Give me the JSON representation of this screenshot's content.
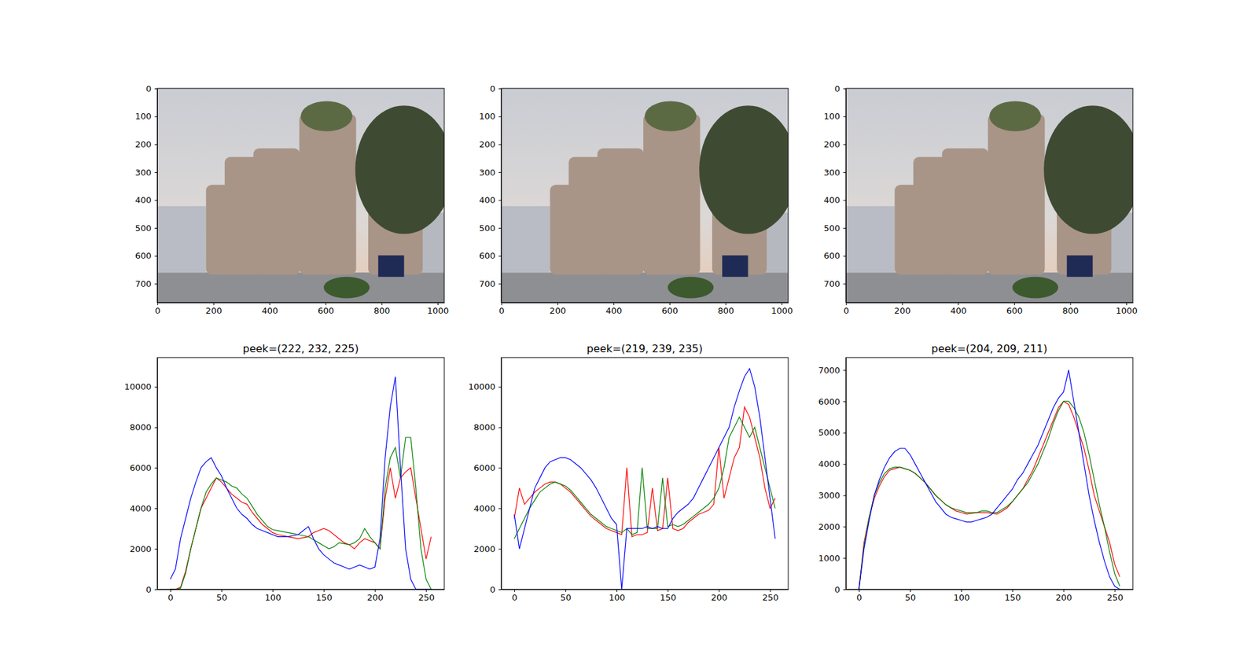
{
  "chart_data": [
    {
      "type": "image",
      "xlim": [
        -0.5,
        1023.5
      ],
      "ylim": [
        767.5,
        -0.5
      ],
      "xticks": [
        0,
        200,
        400,
        600,
        800,
        1000
      ],
      "yticks": [
        0,
        100,
        200,
        300,
        400,
        500,
        600,
        700
      ]
    },
    {
      "type": "image",
      "xlim": [
        -0.5,
        1023.5
      ],
      "ylim": [
        767.5,
        -0.5
      ],
      "xticks": [
        0,
        200,
        400,
        600,
        800,
        1000
      ],
      "yticks": [
        0,
        100,
        200,
        300,
        400,
        500,
        600,
        700
      ]
    },
    {
      "type": "image",
      "xlim": [
        -0.5,
        1023.5
      ],
      "ylim": [
        767.5,
        -0.5
      ],
      "xticks": [
        0,
        200,
        400,
        600,
        800,
        1000
      ],
      "yticks": [
        0,
        100,
        200,
        300,
        400,
        500,
        600,
        700
      ]
    },
    {
      "type": "line",
      "title": "peek=(222, 232, 225)",
      "x": [
        0,
        5,
        10,
        15,
        20,
        25,
        30,
        35,
        40,
        45,
        50,
        55,
        60,
        65,
        70,
        75,
        80,
        85,
        90,
        95,
        100,
        105,
        110,
        115,
        120,
        125,
        130,
        135,
        140,
        145,
        150,
        155,
        160,
        165,
        170,
        175,
        180,
        185,
        190,
        195,
        200,
        205,
        210,
        215,
        220,
        225,
        230,
        235,
        240,
        245,
        250,
        255
      ],
      "xlim": [
        -12.75,
        267.75
      ],
      "xticks": [
        0,
        50,
        100,
        150,
        200,
        250
      ],
      "ylim": [
        0,
        11445
      ],
      "yticks": [
        0,
        2000,
        4000,
        6000,
        8000,
        10000
      ],
      "series": [
        {
          "color": "#ff0000",
          "values": [
            0,
            0,
            100,
            900,
            2000,
            3000,
            4000,
            4500,
            5000,
            5500,
            5300,
            5000,
            4700,
            4500,
            4300,
            4200,
            3800,
            3500,
            3200,
            3000,
            2800,
            2700,
            2650,
            2600,
            2550,
            2500,
            2550,
            2600,
            2800,
            2900,
            3000,
            2900,
            2700,
            2500,
            2300,
            2200,
            2000,
            2300,
            2500,
            2400,
            2300,
            2000,
            4500,
            6000,
            4500,
            5500,
            5800,
            6000,
            4500,
            3000,
            1500,
            2600
          ]
        },
        {
          "color": "#008000",
          "values": [
            0,
            0,
            50,
            800,
            2000,
            3000,
            4000,
            4800,
            5200,
            5500,
            5400,
            5300,
            5100,
            5000,
            4700,
            4500,
            4100,
            3700,
            3400,
            3100,
            2950,
            2900,
            2850,
            2800,
            2750,
            2700,
            2650,
            2600,
            2450,
            2300,
            2150,
            2000,
            2100,
            2300,
            2250,
            2200,
            2300,
            2500,
            3000,
            2600,
            2300,
            2000,
            5000,
            6500,
            7000,
            5500,
            7500,
            7500,
            5000,
            2000,
            500,
            0
          ]
        },
        {
          "color": "#0000ff",
          "values": [
            500,
            1000,
            2500,
            3500,
            4500,
            5300,
            6000,
            6300,
            6500,
            6000,
            5600,
            5000,
            4500,
            4000,
            3700,
            3500,
            3200,
            3000,
            2900,
            2800,
            2700,
            2600,
            2600,
            2600,
            2650,
            2700,
            2900,
            3100,
            2500,
            2000,
            1700,
            1500,
            1300,
            1200,
            1100,
            1000,
            1100,
            1200,
            1100,
            1000,
            1100,
            2500,
            6500,
            9000,
            10500,
            6000,
            2000,
            500,
            0,
            0,
            0,
            0
          ]
        }
      ]
    },
    {
      "type": "line",
      "title": "peek=(219, 239, 235)",
      "x": [
        0,
        5,
        10,
        15,
        20,
        25,
        30,
        35,
        40,
        45,
        50,
        55,
        60,
        65,
        70,
        75,
        80,
        85,
        90,
        95,
        100,
        105,
        110,
        115,
        120,
        125,
        130,
        135,
        140,
        145,
        150,
        155,
        160,
        165,
        170,
        175,
        180,
        185,
        190,
        195,
        200,
        205,
        210,
        215,
        220,
        225,
        230,
        235,
        240,
        245,
        250,
        255
      ],
      "xlim": [
        -12.75,
        267.75
      ],
      "xticks": [
        0,
        50,
        100,
        150,
        200,
        250
      ],
      "ylim": [
        0,
        11445
      ],
      "yticks": [
        0,
        2000,
        4000,
        6000,
        8000,
        10000
      ],
      "series": [
        {
          "color": "#ff0000",
          "values": [
            3500,
            5000,
            4200,
            4500,
            4800,
            5000,
            5200,
            5300,
            5300,
            5200,
            5000,
            4800,
            4500,
            4200,
            3900,
            3600,
            3400,
            3200,
            3000,
            2900,
            2800,
            2700,
            6000,
            2600,
            2700,
            2700,
            2800,
            5000,
            2900,
            3000,
            5500,
            3000,
            2900,
            3000,
            3300,
            3500,
            3700,
            3800,
            3900,
            4200,
            7000,
            4500,
            5500,
            6500,
            7000,
            9000,
            8500,
            7500,
            6500,
            5000,
            4000,
            4500
          ]
        },
        {
          "color": "#008000",
          "values": [
            2500,
            3000,
            3500,
            4000,
            4400,
            4800,
            5000,
            5200,
            5300,
            5200,
            5100,
            4900,
            4600,
            4300,
            4000,
            3700,
            3500,
            3300,
            3100,
            3000,
            2900,
            2800,
            3000,
            2700,
            2800,
            6000,
            3000,
            3000,
            3000,
            5500,
            3100,
            3200,
            3100,
            3200,
            3400,
            3600,
            3800,
            4000,
            4200,
            4500,
            5000,
            6000,
            7500,
            8000,
            8500,
            8000,
            7500,
            8000,
            7000,
            6000,
            5000,
            4000
          ]
        },
        {
          "color": "#0000ff",
          "values": [
            3700,
            2000,
            3000,
            4000,
            5000,
            5500,
            6000,
            6300,
            6400,
            6500,
            6500,
            6400,
            6200,
            6000,
            5700,
            5400,
            5000,
            4500,
            4000,
            3500,
            3200,
            0,
            3000,
            3000,
            3000,
            3000,
            3100,
            3000,
            3100,
            3000,
            3000,
            3500,
            3800,
            4000,
            4200,
            4500,
            5000,
            5500,
            6000,
            6500,
            7000,
            7500,
            8000,
            9000,
            9800,
            10500,
            10900,
            10000,
            8500,
            6500,
            4500,
            2500
          ]
        }
      ]
    },
    {
      "type": "line",
      "title": "peek=(204, 209, 211)",
      "x": [
        0,
        5,
        10,
        15,
        20,
        25,
        30,
        35,
        40,
        45,
        50,
        55,
        60,
        65,
        70,
        75,
        80,
        85,
        90,
        95,
        100,
        105,
        110,
        115,
        120,
        125,
        130,
        135,
        140,
        145,
        150,
        155,
        160,
        165,
        170,
        175,
        180,
        185,
        190,
        195,
        200,
        205,
        210,
        215,
        220,
        225,
        230,
        235,
        240,
        245,
        250,
        255
      ],
      "xlim": [
        -12.75,
        267.75
      ],
      "xticks": [
        0,
        50,
        100,
        150,
        200,
        250
      ],
      "ylim": [
        0,
        7400
      ],
      "yticks": [
        0,
        1000,
        2000,
        3000,
        4000,
        5000,
        6000,
        7000
      ],
      "series": [
        {
          "color": "#ff0000",
          "values": [
            0,
            1500,
            2300,
            2900,
            3300,
            3600,
            3800,
            3850,
            3900,
            3850,
            3800,
            3700,
            3550,
            3400,
            3200,
            3000,
            2850,
            2700,
            2600,
            2500,
            2450,
            2400,
            2420,
            2450,
            2450,
            2450,
            2420,
            2400,
            2500,
            2600,
            2800,
            3000,
            3200,
            3500,
            3800,
            4200,
            4600,
            5000,
            5400,
            5800,
            6000,
            5900,
            5500,
            5000,
            4500,
            3800,
            3000,
            2500,
            2000,
            1500,
            800,
            400
          ]
        },
        {
          "color": "#008000",
          "values": [
            0,
            1400,
            2300,
            3000,
            3400,
            3700,
            3850,
            3900,
            3900,
            3850,
            3800,
            3700,
            3550,
            3400,
            3200,
            3000,
            2850,
            2700,
            2600,
            2550,
            2500,
            2450,
            2450,
            2450,
            2500,
            2500,
            2450,
            2450,
            2550,
            2650,
            2800,
            3000,
            3200,
            3400,
            3700,
            4000,
            4400,
            4800,
            5300,
            5700,
            6000,
            6000,
            5800,
            5500,
            5000,
            4300,
            3500,
            2700,
            2000,
            1200,
            500,
            100
          ]
        },
        {
          "color": "#0000ff",
          "values": [
            0,
            1300,
            2200,
            3000,
            3500,
            3900,
            4200,
            4400,
            4500,
            4500,
            4300,
            4000,
            3700,
            3400,
            3100,
            2800,
            2600,
            2400,
            2300,
            2250,
            2200,
            2150,
            2150,
            2200,
            2250,
            2300,
            2400,
            2600,
            2800,
            3000,
            3200,
            3500,
            3700,
            4000,
            4300,
            4600,
            5000,
            5400,
            5800,
            6100,
            6300,
            7000,
            6000,
            5000,
            4000,
            3000,
            2200,
            1500,
            900,
            400,
            100,
            0
          ]
        }
      ]
    }
  ]
}
